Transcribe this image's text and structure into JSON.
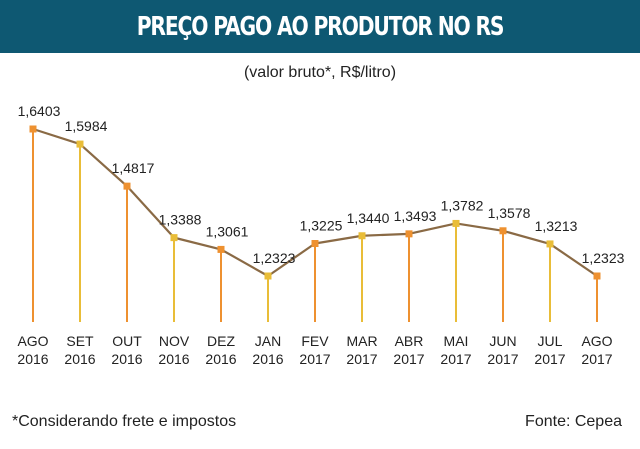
{
  "header": {
    "title": "PREÇO PAGO AO PRODUTOR NO RS"
  },
  "subtitle": "(valor bruto*, R$/litro)",
  "footnote": "*Considerando frete e impostos",
  "source": "Fonte: Cepea",
  "colors": {
    "header_bg": "#0e5872",
    "line": "#8a6a45",
    "orange": "#ee9130",
    "yellow": "#e9bd38",
    "text": "#222222"
  },
  "chart_data": {
    "type": "line",
    "categories": [
      [
        "AGO",
        "2016"
      ],
      [
        "SET",
        "2016"
      ],
      [
        "OUT",
        "2016"
      ],
      [
        "NOV",
        "2016"
      ],
      [
        "DEZ",
        "2016"
      ],
      [
        "JAN",
        "2016"
      ],
      [
        "FEV",
        "2017"
      ],
      [
        "MAR",
        "2017"
      ],
      [
        "ABR",
        "2017"
      ],
      [
        "MAI",
        "2017"
      ],
      [
        "JUN",
        "2017"
      ],
      [
        "JUL",
        "2017"
      ],
      [
        "AGO",
        "2017"
      ]
    ],
    "values": [
      1.6403,
      1.5984,
      1.4817,
      1.3388,
      1.3061,
      1.2323,
      1.3225,
      1.344,
      1.3493,
      1.3782,
      1.3578,
      1.3213,
      1.2323
    ],
    "labels": [
      "1,6403",
      "1,5984",
      "1,4817",
      "1,3388",
      "1,3061",
      "1,2323",
      "1,3225",
      "1,3440",
      "1,3493",
      "1,3782",
      "1,3578",
      "1,3213",
      "1,2323"
    ],
    "stem_colors": [
      "orange",
      "yellow",
      "orange",
      "yellow",
      "orange",
      "yellow",
      "orange",
      "yellow",
      "orange",
      "yellow",
      "orange",
      "yellow",
      "orange"
    ]
  }
}
